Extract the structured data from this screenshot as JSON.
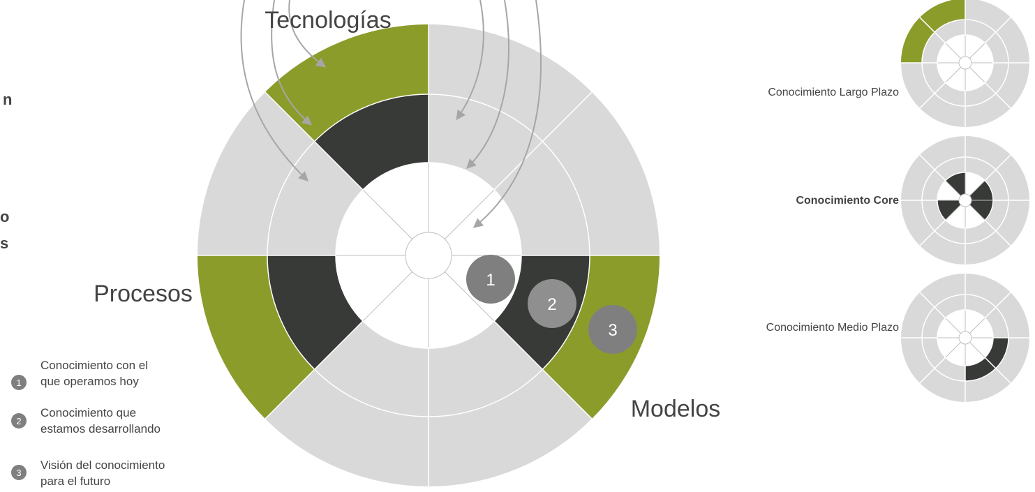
{
  "diagram_labels": {
    "top": "Tecnologías",
    "left": "Procesos",
    "right": "Modelos"
  },
  "markers": [
    "1",
    "2",
    "3"
  ],
  "side_fragments": [
    "n",
    "o",
    "s"
  ],
  "legend": [
    {
      "number": "1",
      "lines": [
        "Conocimiento con el",
        "que operamos hoy"
      ]
    },
    {
      "number": "2",
      "lines": [
        "Conocimiento que",
        "estamos desarrollando"
      ]
    },
    {
      "number": "3",
      "lines": [
        "Visión del conocimiento",
        "para el futuro"
      ]
    }
  ],
  "mini_diagrams": [
    {
      "label": "Conocimiento Largo Plazo"
    },
    {
      "label": "Conocimiento Core"
    },
    {
      "label": "Conocimiento Medio Plazo"
    }
  ]
}
